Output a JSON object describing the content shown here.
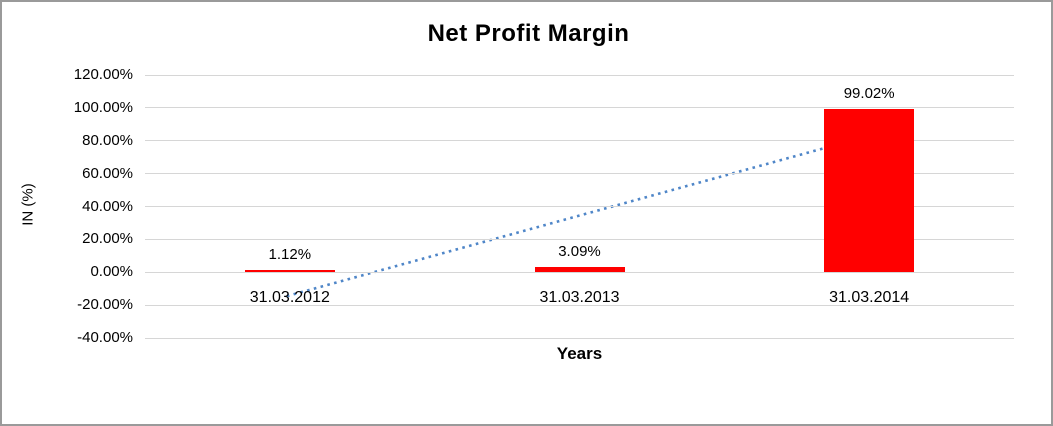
{
  "chart_data": {
    "type": "bar",
    "title": "Net Profit Margin",
    "xlabel": "Years",
    "ylabel": "IN (%)",
    "categories": [
      "31.03.2012",
      "31.03.2013",
      "31.03.2014"
    ],
    "values": [
      1.12,
      3.09,
      99.02
    ],
    "data_labels": [
      "1.12%",
      "3.09%",
      "99.02%"
    ],
    "yticks": [
      {
        "value": 120,
        "label": "120.00%"
      },
      {
        "value": 100,
        "label": "100.00%"
      },
      {
        "value": 80,
        "label": "80.00%"
      },
      {
        "value": 60,
        "label": "60.00%"
      },
      {
        "value": 40,
        "label": "40.00%"
      },
      {
        "value": 20,
        "label": "20.00%"
      },
      {
        "value": 0,
        "label": "0.00%"
      },
      {
        "value": -20,
        "label": "-20.00%"
      },
      {
        "value": -40,
        "label": "-40.00%"
      }
    ],
    "ylim": [
      -40,
      120
    ],
    "grid": true,
    "legend": null,
    "bar_color": "#ff0000",
    "gridline_color": "#d6d6d6",
    "trendline": {
      "type": "linear",
      "style": "dotted",
      "color": "#4f86c8",
      "start_value": -14.54,
      "end_value": 83.36
    }
  }
}
